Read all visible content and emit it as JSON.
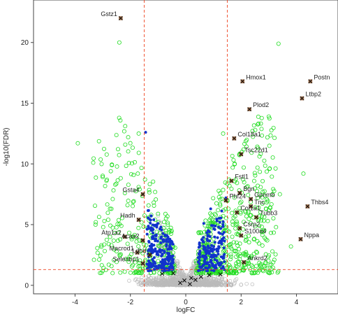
{
  "chart_data": {
    "type": "scatter",
    "xlabel": "logFC",
    "ylabel": "-log10(FDR)",
    "xlim": [
      -5.5,
      5.5
    ],
    "ylim": [
      -0.7,
      23.5
    ],
    "x_ticks": [
      -4,
      -2,
      0,
      2,
      4
    ],
    "y_ticks": [
      0,
      5,
      10,
      15,
      20
    ],
    "grid": false,
    "thresholds": {
      "logfc": [
        -1.5,
        1.5
      ],
      "neg_log10_fdr": 1.3
    },
    "colors": {
      "not_significant": "#bbbbbb",
      "significant": "#22dd22",
      "highlighted": "#1133cc",
      "labeled": "#8b4513",
      "threshold_line": "#ee4422",
      "axis": "#444444"
    },
    "labeled_points": [
      {
        "label": "Gstz1",
        "x": -2.35,
        "y": 22.0
      },
      {
        "label": "Hmox1",
        "x": 2.05,
        "y": 16.8
      },
      {
        "label": "Postn",
        "x": 4.5,
        "y": 16.8
      },
      {
        "label": "Ltbp2",
        "x": 4.2,
        "y": 15.4
      },
      {
        "label": "Plod2",
        "x": 2.3,
        "y": 14.5
      },
      {
        "label": "Col18a1",
        "x": 1.75,
        "y": 12.1
      },
      {
        "label": "Tsc22d1",
        "x": 2.0,
        "y": 10.8
      },
      {
        "label": "Fstl1",
        "x": 1.65,
        "y": 8.6
      },
      {
        "label": "Bgn",
        "x": 1.95,
        "y": 7.6
      },
      {
        "label": "Gpnmb",
        "x": 2.35,
        "y": 7.1
      },
      {
        "label": "Phf24",
        "x": 1.45,
        "y": 7.0
      },
      {
        "label": "Tnc",
        "x": 2.35,
        "y": 6.5
      },
      {
        "label": "Thbs4",
        "x": 4.4,
        "y": 6.5
      },
      {
        "label": "Col1a1",
        "x": 1.85,
        "y": 6.0
      },
      {
        "label": "Tubb3",
        "x": 2.55,
        "y": 5.6
      },
      {
        "label": "Csrp2",
        "x": 1.95,
        "y": 4.7
      },
      {
        "label": "S100a4",
        "x": 2.0,
        "y": 4.1
      },
      {
        "label": "Nppa",
        "x": 4.15,
        "y": 3.8
      },
      {
        "label": "Ankrd2",
        "x": 2.1,
        "y": 1.9
      },
      {
        "label": "Gsta4",
        "x": -1.55,
        "y": 7.5
      },
      {
        "label": "Hadh",
        "x": -1.7,
        "y": 5.4
      },
      {
        "label": "Atp1a2",
        "x": -2.2,
        "y": 4.0
      },
      {
        "label": "Acaa2",
        "x": -1.55,
        "y": 3.7
      },
      {
        "label": "Macrod1",
        "x": -1.75,
        "y": 2.7
      },
      {
        "label": "Ldhd",
        "x": -1.3,
        "y": 2.5
      },
      {
        "label": "Selenbp1",
        "x": -1.55,
        "y": 1.8
      }
    ],
    "highlighted_points_approx": [
      {
        "x": -1.45,
        "y": 12.6
      },
      {
        "x": -1.25,
        "y": 5.7
      },
      {
        "x": -0.9,
        "y": 4.8
      },
      {
        "x": -0.7,
        "y": 3.6
      },
      {
        "x": -1.1,
        "y": 3.0
      },
      {
        "x": -0.55,
        "y": 2.4
      },
      {
        "x": 0.65,
        "y": 5.1
      },
      {
        "x": 1.05,
        "y": 4.6
      },
      {
        "x": 1.3,
        "y": 3.4
      },
      {
        "x": 0.85,
        "y": 2.6
      },
      {
        "x": 1.45,
        "y": 7.2
      },
      {
        "x": 0.9,
        "y": 6.3
      }
    ],
    "significant_points_approx": [
      {
        "x": 3.35,
        "y": 19.9
      },
      {
        "x": -2.4,
        "y": 20.0
      },
      {
        "x": -3.9,
        "y": 11.7
      },
      {
        "x": -1.7,
        "y": 12.5
      },
      {
        "x": 1.35,
        "y": 12.5
      },
      {
        "x": 4.25,
        "y": 9.2
      },
      {
        "x": 3.0,
        "y": 6.2
      },
      {
        "x": 3.4,
        "y": 7.5
      },
      {
        "x": 2.6,
        "y": 8.2
      },
      {
        "x": -2.2,
        "y": 7.6
      },
      {
        "x": -2.8,
        "y": 5.4
      },
      {
        "x": -3.25,
        "y": 5.2
      },
      {
        "x": -3.05,
        "y": 3.3
      },
      {
        "x": -2.5,
        "y": 2.8
      },
      {
        "x": 3.8,
        "y": 3.2
      },
      {
        "x": 3.2,
        "y": 2.1
      }
    ],
    "unlabeled_mark_points_approx": [
      {
        "x": -0.45,
        "y": 1.0
      },
      {
        "x": -0.2,
        "y": 0.2
      },
      {
        "x": 0.15,
        "y": 0.1
      },
      {
        "x": 0.35,
        "y": 0.45
      },
      {
        "x": 0.55,
        "y": 0.7
      },
      {
        "x": 0.85,
        "y": 0.85
      },
      {
        "x": 1.25,
        "y": 0.9
      },
      {
        "x": -0.85,
        "y": 0.95
      },
      {
        "x": 0.2,
        "y": 0.6
      },
      {
        "x": -0.05,
        "y": 0.4
      }
    ]
  }
}
